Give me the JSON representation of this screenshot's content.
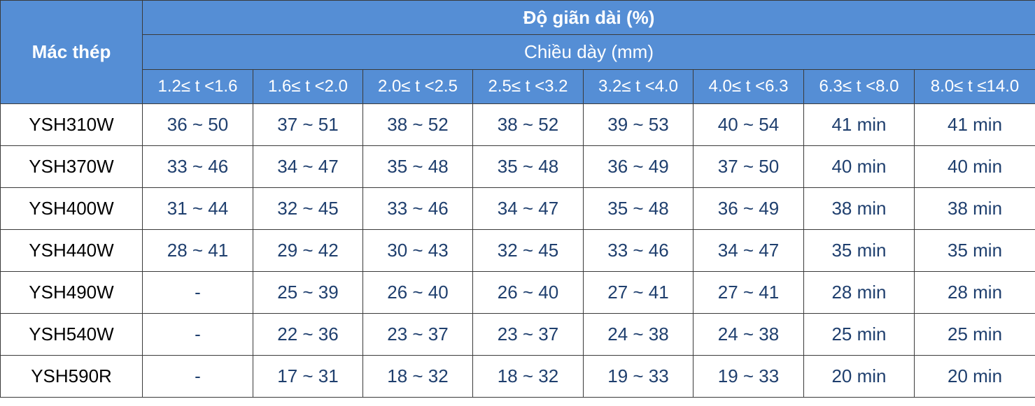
{
  "table": {
    "corner": "Mác thép",
    "group_header": "Độ giãn dài (%)",
    "sub_header": "Chiều dày (mm)",
    "columns": [
      "1.2≤ t <1.6",
      "1.6≤ t <2.0",
      "2.0≤ t <2.5",
      "2.5≤ t <3.2",
      "3.2≤ t <4.0",
      "4.0≤ t <6.3",
      "6.3≤ t <8.0",
      "8.0≤ t ≤14.0"
    ],
    "rows": [
      [
        "YSH310W",
        "36 ~ 50",
        "37 ~ 51",
        "38 ~ 52",
        "38 ~ 52",
        "39 ~ 53",
        "40 ~ 54",
        "41 min",
        "41 min"
      ],
      [
        "YSH370W",
        "33 ~ 46",
        "34 ~ 47",
        "35 ~ 48",
        "35 ~ 48",
        "36 ~ 49",
        "37 ~ 50",
        "40 min",
        "40 min"
      ],
      [
        "YSH400W",
        "31 ~ 44",
        "32 ~ 45",
        "33 ~ 46",
        "34 ~ 47",
        "35 ~ 48",
        "36 ~ 49",
        "38 min",
        "38 min"
      ],
      [
        "YSH440W",
        "28 ~ 41",
        "29 ~ 42",
        "30 ~ 43",
        "32 ~ 45",
        "33 ~ 46",
        "34 ~ 47",
        "35 min",
        "35 min"
      ],
      [
        "YSH490W",
        "-",
        "25 ~ 39",
        "26 ~ 40",
        "26 ~ 40",
        "27 ~ 41",
        "27 ~ 41",
        "28 min",
        "28 min"
      ],
      [
        "YSH540W",
        "-",
        "22 ~ 36",
        "23 ~ 37",
        "23 ~ 37",
        "24 ~ 38",
        "24 ~ 38",
        "25 min",
        "25 min"
      ],
      [
        "YSH590R",
        "-",
        "17 ~ 31",
        "18 ~ 32",
        "18 ~ 32",
        "19 ~ 33",
        "19 ~ 33",
        "20 min",
        "20 min"
      ]
    ]
  }
}
